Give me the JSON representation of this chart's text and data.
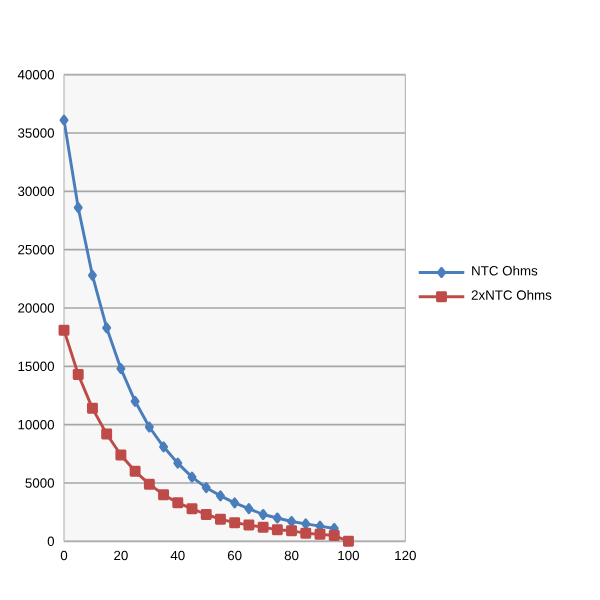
{
  "chart_data": {
    "type": "line",
    "x": [
      0,
      5,
      10,
      15,
      20,
      25,
      30,
      35,
      40,
      45,
      50,
      55,
      60,
      65,
      70,
      75,
      80,
      85,
      90,
      95,
      100
    ],
    "series": [
      {
        "name": "NTC Ohms",
        "color": "#4a7ebb",
        "marker": "diamond",
        "values": [
          36100,
          28600,
          22800,
          18300,
          14800,
          12000,
          9800,
          8100,
          6700,
          5500,
          4600,
          3900,
          3300,
          2800,
          2300,
          2000,
          1700,
          1500,
          1300,
          1100,
          null
        ]
      },
      {
        "name": "2xNTC Ohms",
        "color": "#be4b48",
        "marker": "square",
        "values": [
          18100,
          14300,
          11400,
          9200,
          7400,
          6000,
          4900,
          4000,
          3300,
          2800,
          2300,
          1900,
          1600,
          1400,
          1200,
          1000,
          900,
          700,
          600,
          500,
          0
        ]
      }
    ],
    "xlim": [
      0,
      120
    ],
    "xticks": [
      0,
      20,
      40,
      60,
      80,
      100,
      120
    ],
    "ylim": [
      0,
      40000
    ],
    "yticks": [
      0,
      5000,
      10000,
      15000,
      20000,
      25000,
      30000,
      35000,
      40000
    ],
    "grid": "y",
    "legend": "right",
    "line_style": "solid"
  }
}
